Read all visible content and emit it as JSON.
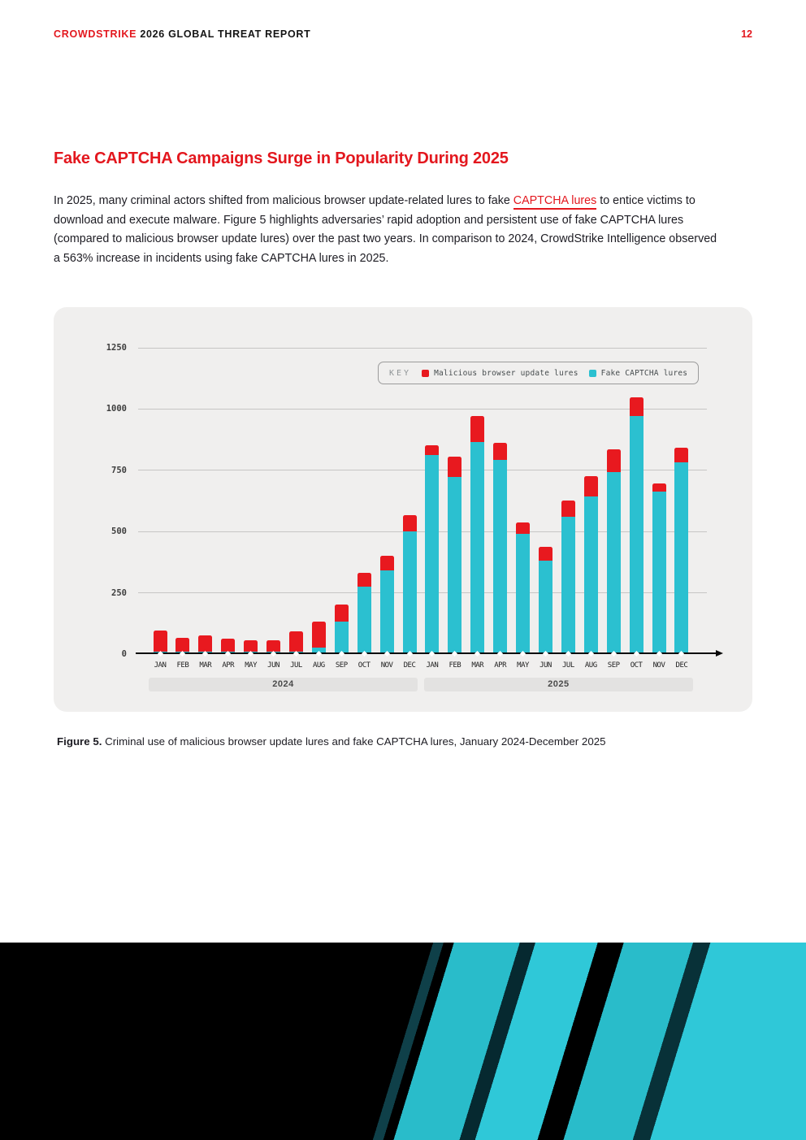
{
  "header": {
    "brand": "CROWDSTRIKE",
    "report_title": "2026 GLOBAL THREAT REPORT",
    "page_number": "12"
  },
  "section": {
    "title": "Fake CAPTCHA Campaigns Surge in Popularity During 2025",
    "paragraph": {
      "before_link": "In 2025, many criminal actors shifted from malicious browser update-related lures to fake ",
      "link_text": "CAPTCHA lures",
      "after_link": " to entice victims to download and execute malware. Figure 5 highlights adversaries’ rapid adoption and persistent use of fake CAPTCHA lures (compared to malicious browser update lures) over the past two years. In comparison to 2024, CrowdStrike Intelligence observed a 563% increase in incidents using fake CAPTCHA lures in 2025."
    }
  },
  "figure": {
    "label": "Figure 5.",
    "caption": " Criminal use of malicious browser update lures and fake CAPTCHA lures, January 2024-December 2025"
  },
  "colors": {
    "brand_red": "#e3171e",
    "chart_red": "#e8191f",
    "chart_cyan": "#2bc0d0",
    "panel_bg": "#f0efee",
    "footer_cyan": "#2fc8d8",
    "footer_black": "#000000"
  },
  "chart_data": {
    "type": "bar",
    "stacked": true,
    "title": "",
    "xlabel": "",
    "ylabel": "",
    "grid": true,
    "legend_position": "top-right",
    "legend_key_label": "KEY",
    "ylim": [
      0,
      1250
    ],
    "yticks": [
      0,
      250,
      500,
      750,
      1000,
      1250
    ],
    "categories": [
      "JAN",
      "FEB",
      "MAR",
      "APR",
      "MAY",
      "JUN",
      "JUL",
      "AUG",
      "SEP",
      "OCT",
      "NOV",
      "DEC",
      "JAN",
      "FEB",
      "MAR",
      "APR",
      "MAY",
      "JUN",
      "JUL",
      "AUG",
      "SEP",
      "OCT",
      "NOV",
      "DEC"
    ],
    "year_groups": [
      {
        "label": "2024",
        "start": 0,
        "end": 11
      },
      {
        "label": "2025",
        "start": 12,
        "end": 23
      }
    ],
    "series": [
      {
        "name": "Fake CAPTCHA lures",
        "color": "#2bc0d0",
        "values": [
          5,
          5,
          5,
          5,
          5,
          5,
          5,
          20,
          125,
          270,
          335,
          495,
          805,
          715,
          860,
          785,
          485,
          375,
          555,
          635,
          735,
          965,
          655,
          775
        ]
      },
      {
        "name": "Malicious browser update lures",
        "color": "#e8191f",
        "values": [
          85,
          55,
          65,
          50,
          45,
          45,
          80,
          105,
          70,
          55,
          60,
          65,
          40,
          85,
          105,
          70,
          45,
          55,
          65,
          85,
          95,
          75,
          35,
          60
        ]
      }
    ]
  }
}
